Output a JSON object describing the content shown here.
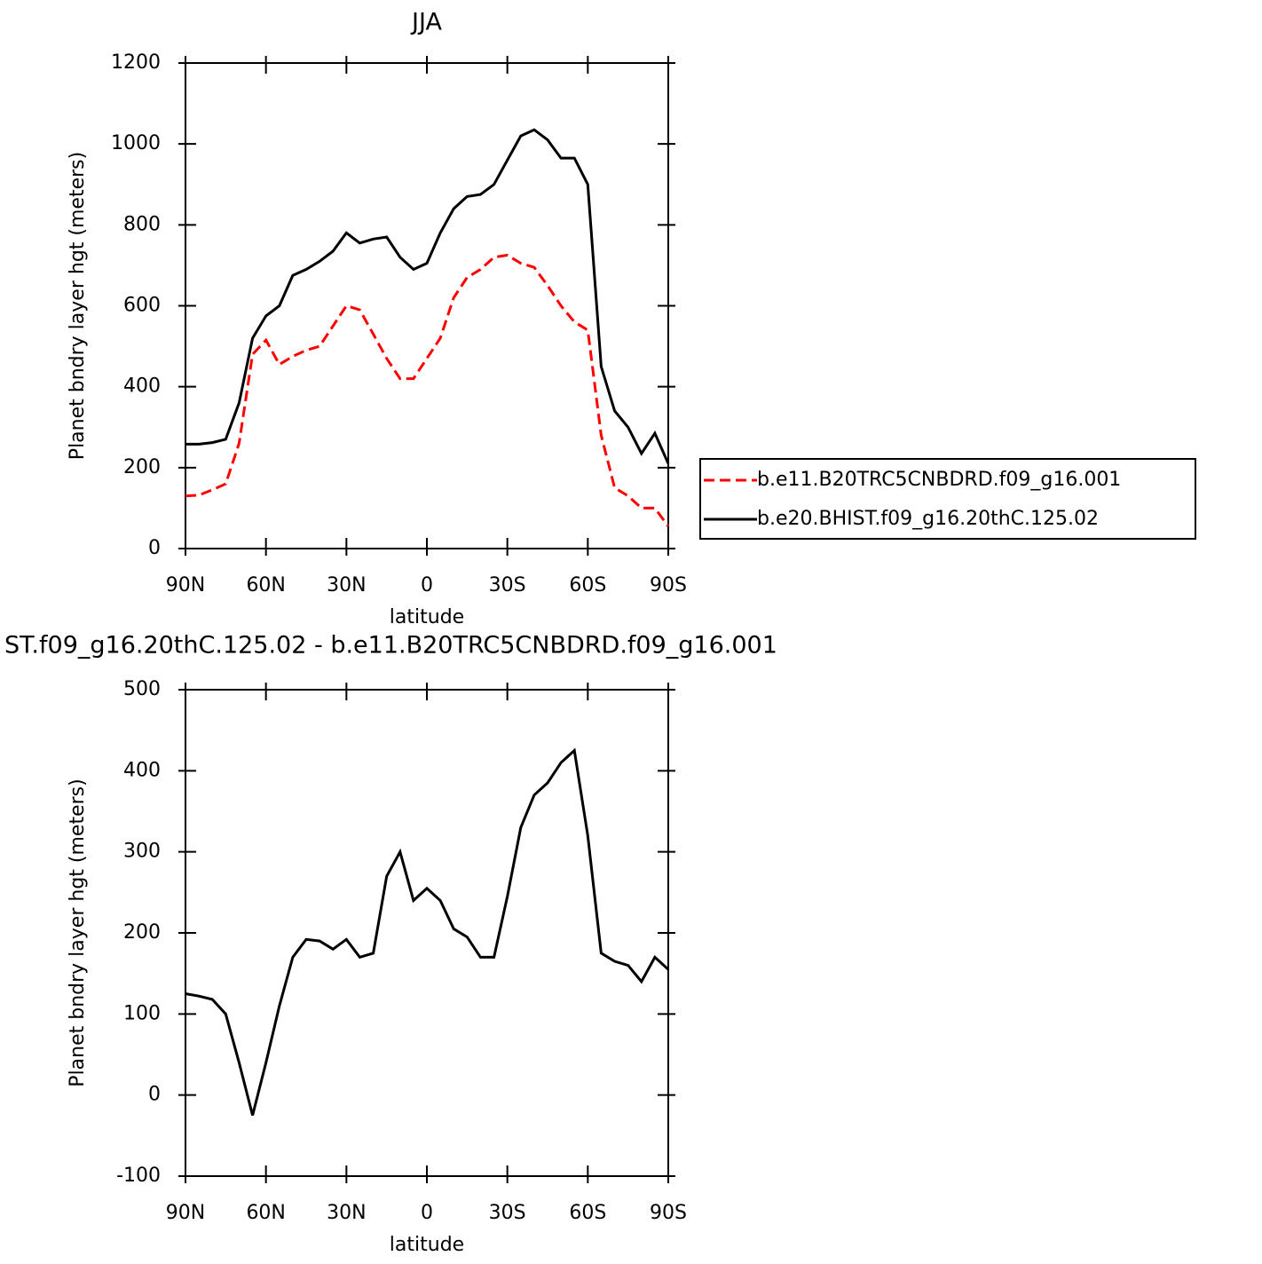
{
  "chart_data": [
    {
      "type": "line",
      "title": "JJA",
      "xlabel": "latitude",
      "ylabel": "Planet bndry layer hgt (meters)",
      "x": [
        90,
        85,
        80,
        75,
        70,
        65,
        60,
        55,
        50,
        45,
        40,
        35,
        30,
        25,
        20,
        15,
        10,
        5,
        0,
        -5,
        -10,
        -15,
        -20,
        -25,
        -30,
        -35,
        -40,
        -45,
        -50,
        -55,
        -60,
        -65,
        -70,
        -75,
        -80,
        -85,
        -90
      ],
      "series": [
        {
          "name": "b.e11.B20TRC5CNBDRD.f09_g16.001",
          "color": "#ff0000",
          "linestyle": "dashed",
          "values": [
            130,
            132,
            145,
            160,
            260,
            480,
            515,
            455,
            475,
            490,
            500,
            550,
            600,
            590,
            530,
            470,
            420,
            420,
            470,
            520,
            620,
            670,
            690,
            720,
            725,
            705,
            695,
            650,
            600,
            560,
            540,
            280,
            150,
            130,
            100,
            100,
            55
          ]
        },
        {
          "name": "b.e20.BHIST.f09_g16.20thC.125.02",
          "color": "#000000",
          "linestyle": "solid",
          "values": [
            258,
            258,
            262,
            270,
            360,
            520,
            575,
            600,
            675,
            690,
            710,
            735,
            780,
            755,
            765,
            770,
            720,
            690,
            705,
            780,
            840,
            870,
            875,
            900,
            960,
            1020,
            1035,
            1010,
            965,
            965,
            900,
            450,
            340,
            300,
            235,
            285,
            210
          ]
        }
      ],
      "xlim": [
        90,
        -90
      ],
      "xticks": [
        {
          "value": 90,
          "label": "90N"
        },
        {
          "value": 60,
          "label": "60N"
        },
        {
          "value": 30,
          "label": "30N"
        },
        0,
        {
          "value": -30,
          "label": "30S"
        },
        {
          "value": -60,
          "label": "60S"
        },
        {
          "value": -90,
          "label": "90S"
        }
      ],
      "ylim": [
        0,
        1200
      ],
      "yticks": [
        0,
        200,
        400,
        600,
        800,
        1000,
        1200
      ],
      "legend": "right"
    },
    {
      "type": "line",
      "title": "ST.f09_g16.20thC.125.02 - b.e11.B20TRC5CNBDRD.f09_g16.001",
      "xlabel": "latitude",
      "ylabel": "Planet bndry layer hgt (meters)",
      "x": [
        90,
        85,
        80,
        75,
        70,
        65,
        60,
        55,
        50,
        45,
        40,
        35,
        30,
        25,
        20,
        15,
        10,
        5,
        0,
        -5,
        -10,
        -15,
        -20,
        -25,
        -30,
        -35,
        -40,
        -45,
        -50,
        -55,
        -60,
        -65,
        -70,
        -75,
        -80,
        -85,
        -90
      ],
      "series": [
        {
          "color": "#000000",
          "linestyle": "solid",
          "values": [
            125,
            122,
            118,
            100,
            40,
            -25,
            40,
            110,
            170,
            192,
            190,
            180,
            192,
            170,
            175,
            270,
            300,
            240,
            255,
            240,
            205,
            195,
            170,
            170,
            245,
            330,
            370,
            385,
            410,
            425,
            320,
            175,
            165,
            160,
            140,
            170,
            155
          ]
        }
      ],
      "xlim": [
        90,
        -90
      ],
      "xticks": [
        {
          "value": 90,
          "label": "90N"
        },
        {
          "value": 60,
          "label": "60N"
        },
        {
          "value": 30,
          "label": "30N"
        },
        0,
        {
          "value": -30,
          "label": "30S"
        },
        {
          "value": -60,
          "label": "60S"
        },
        {
          "value": -90,
          "label": "90S"
        }
      ],
      "ylim": [
        -100,
        500
      ],
      "yticks": [
        -100,
        0,
        100,
        200,
        300,
        400,
        500
      ]
    }
  ]
}
